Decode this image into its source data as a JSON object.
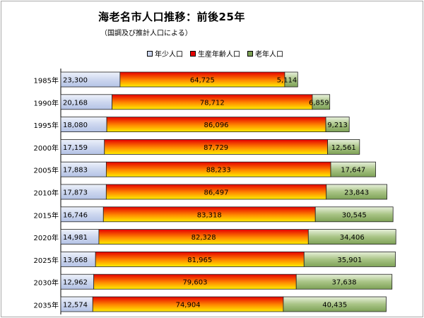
{
  "title": "海老名市人口推移：前後25年",
  "subtitle": "（国調及び推計人口による）",
  "colors": {
    "youth": "#cdd7ef",
    "working_top": "#e60000",
    "working_bottom": "#ffee00",
    "elderly": "#7ea257"
  },
  "chart_data": {
    "type": "bar",
    "orientation": "horizontal",
    "stacked": true,
    "categories": [
      "1985年",
      "1990年",
      "1995年",
      "2000年",
      "2005年",
      "2010年",
      "2015年",
      "2020年",
      "2025年",
      "2030年",
      "2035年"
    ],
    "series": [
      {
        "name": "年少人口",
        "values": [
          23300,
          20168,
          18080,
          17159,
          17883,
          17873,
          16746,
          14981,
          13668,
          12962,
          12574
        ]
      },
      {
        "name": "生産年齢人口",
        "values": [
          64725,
          78712,
          86096,
          87729,
          88233,
          86497,
          83318,
          82328,
          81965,
          79603,
          74904
        ]
      },
      {
        "name": "老年人口",
        "values": [
          5114,
          6859,
          9213,
          12561,
          17647,
          23843,
          30545,
          34406,
          35901,
          37638,
          40435
        ]
      }
    ],
    "data_labels": [
      [
        "23,300",
        "20,168",
        "18,080",
        "17,159",
        "17,883",
        "17,873",
        "16,746",
        "14,981",
        "13,668",
        "12,962",
        "12,574"
      ],
      [
        "64,725",
        "78,712",
        "86,096",
        "87,729",
        "88,233",
        "86,497",
        "83,318",
        "82,328",
        "81,965",
        "79,603",
        "74,904"
      ],
      [
        "5,114",
        "6,859",
        "9,213",
        "12,561",
        "17,647",
        "23,843",
        "30,545",
        "34,406",
        "35,901",
        "37,638",
        "40,435"
      ]
    ],
    "legend_position": "top",
    "grid": false
  }
}
